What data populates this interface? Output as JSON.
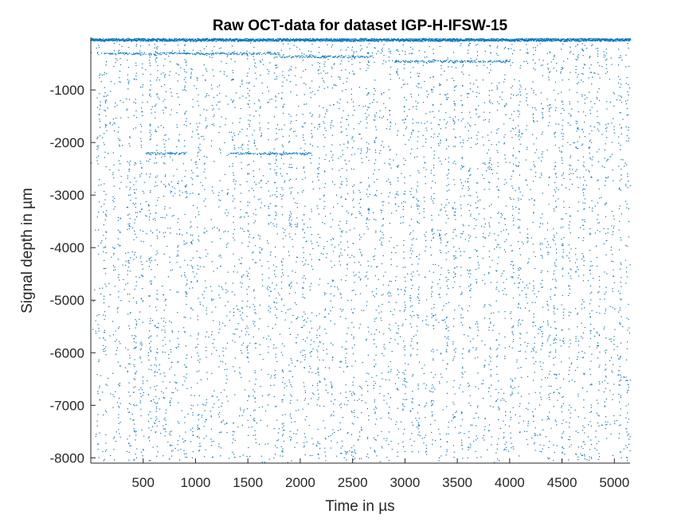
{
  "chart_data": {
    "type": "scatter",
    "title": "Raw OCT-data for dataset IGP-H-IFSW-15",
    "xlabel": "Time in µs",
    "ylabel": "Signal depth in µm",
    "xlim": [
      0,
      5150
    ],
    "ylim": [
      -8100,
      0
    ],
    "xticks": [
      500,
      1000,
      1500,
      2000,
      2500,
      3000,
      3500,
      4000,
      4500,
      5000
    ],
    "xtick_labels": [
      "500",
      "1000",
      "1500",
      "2000",
      "2500",
      "3000",
      "3500",
      "4000",
      "4500",
      "5000"
    ],
    "yticks": [
      -1000,
      -2000,
      -3000,
      -4000,
      -5000,
      -6000,
      -7000,
      -8000
    ],
    "ytick_labels": [
      "-1000",
      "-2000",
      "-3000",
      "-4000",
      "-5000",
      "-6000",
      "-7000",
      "-8000"
    ],
    "grid": false,
    "marker_color": "#0072BD",
    "series": [
      {
        "description_values": "dense surface signal near depth -50 µm across full time range; secondary band near -300 to -450 µm; scattered vertical streaks of points spaced roughly every 100-150 µs from 0 to -8000 µm",
        "surface_line": {
          "x": [
            0,
            5150
          ],
          "y": [
            -40,
            -40
          ]
        },
        "secondary_bands": [
          {
            "x": [
              100,
              1800
            ],
            "y": -300
          },
          {
            "x": [
              1800,
              2700
            ],
            "y": -360
          },
          {
            "x": [
              2900,
              4000
            ],
            "y": -450
          },
          {
            "x": [
              1300,
              2100
            ],
            "y": -2200
          },
          {
            "x": [
              500,
              900
            ],
            "y": -2200
          }
        ],
        "streak_x": [
          70,
          130,
          220,
          270,
          360,
          420,
          480,
          560,
          620,
          700,
          760,
          830,
          900,
          960,
          1020,
          1090,
          1160,
          1230,
          1290,
          1360,
          1430,
          1500,
          1560,
          1620,
          1700,
          1760,
          1830,
          1900,
          1960,
          2030,
          2100,
          2170,
          2230,
          2300,
          2380,
          2440,
          2500,
          2570,
          2640,
          2710,
          2780,
          2850,
          2920,
          2990,
          3060,
          3120,
          3190,
          3260,
          3330,
          3400,
          3470,
          3540,
          3610,
          3680,
          3750,
          3810,
          3880,
          3950,
          4020,
          4090,
          4160,
          4230,
          4300,
          4370,
          4430,
          4500,
          4570,
          4640,
          4700,
          4770,
          4840,
          4910,
          4980,
          5050,
          5120
        ]
      }
    ]
  }
}
